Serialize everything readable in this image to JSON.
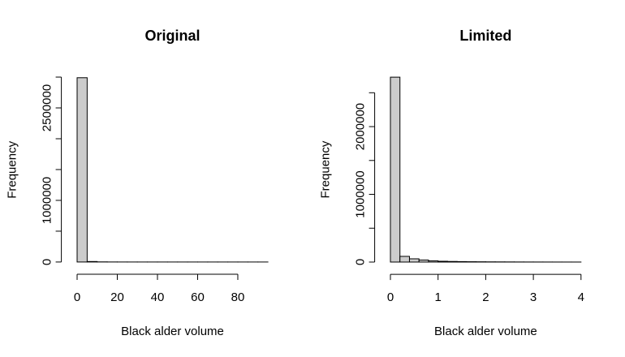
{
  "chart_data": [
    {
      "type": "histogram",
      "title": "Original",
      "xlabel": "Black alder volume",
      "ylabel": "Frequency",
      "color": "#cccccc",
      "bins": [
        0,
        5,
        10,
        15,
        20,
        25,
        30,
        35,
        40,
        45,
        50,
        55,
        60,
        65,
        70,
        75,
        80,
        85,
        90,
        95
      ],
      "values": [
        2990000,
        8000,
        2000,
        800,
        400,
        200,
        100,
        80,
        50,
        30,
        20,
        15,
        10,
        8,
        5,
        3,
        2,
        1,
        1
      ],
      "xlim": [
        -3.8,
        98.8
      ],
      "ylim": [
        -119600,
        3109600
      ],
      "xticks": [
        0,
        20,
        40,
        60,
        80
      ],
      "yticks": [
        0,
        1000000,
        2500000
      ],
      "yminor": [
        500000,
        1500000,
        2000000,
        3000000
      ]
    },
    {
      "type": "histogram",
      "title": "Limited",
      "xlabel": "Black alder volume",
      "ylabel": "Frequency",
      "color": "#cccccc",
      "bins": [
        0,
        0.2,
        0.4,
        0.6,
        0.8,
        1,
        1.2,
        1.4,
        1.6,
        1.8,
        2,
        2.2,
        2.4,
        2.6,
        2.8,
        3,
        3.2,
        3.4,
        3.6,
        3.8,
        4
      ],
      "values": [
        2730000,
        84000,
        48000,
        30000,
        18000,
        12000,
        9000,
        7000,
        5000,
        4000,
        3000,
        2500,
        2000,
        1500,
        1200,
        1000,
        800,
        600,
        500,
        400
      ],
      "xlim": [
        -0.16,
        4.16
      ],
      "ylim": [
        -109200,
        2839200
      ],
      "xticks": [
        0,
        1,
        2,
        3,
        4
      ],
      "yticks": [
        0,
        1000000,
        2000000
      ],
      "yminor": [
        500000,
        1500000,
        2500000
      ]
    }
  ]
}
